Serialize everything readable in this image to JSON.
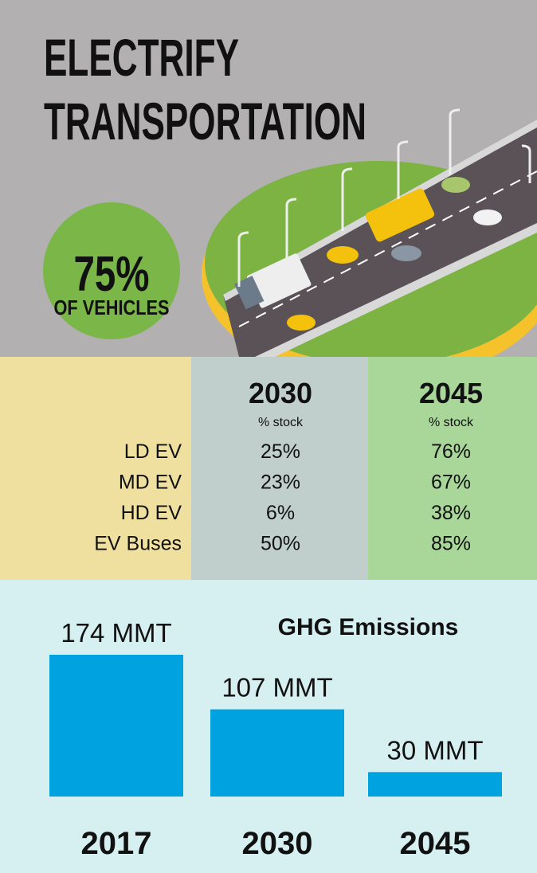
{
  "header": {
    "title_lines": [
      "ELECTRIFY",
      "TRANSPORTATION"
    ],
    "stat": "75%",
    "stat_label": "OF VEHICLES"
  },
  "table": {
    "columns": [
      {
        "year": "2030",
        "unit": "% stock"
      },
      {
        "year": "2045",
        "unit": "% stock"
      }
    ],
    "rows": [
      [
        "LD EV",
        "25%",
        "76%"
      ],
      [
        "MD EV",
        "23%",
        "67%"
      ],
      [
        "HD EV",
        "6%",
        "38%"
      ],
      [
        "EV Buses",
        "50%",
        "85%"
      ]
    ]
  },
  "chart_data": {
    "type": "bar",
    "title": "GHG Emissions",
    "categories": [
      "2017",
      "2030",
      "2045"
    ],
    "values": [
      174,
      107,
      30
    ],
    "value_labels": [
      "174 MMT",
      "107 MMT",
      "30 MMT"
    ],
    "color": "#00a3df"
  }
}
